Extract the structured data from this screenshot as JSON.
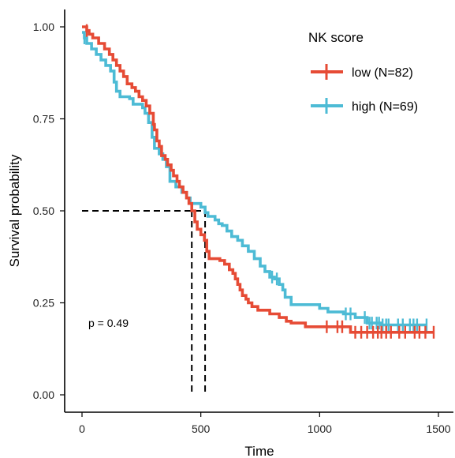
{
  "chart_data": {
    "type": "line",
    "subtype": "kaplan-meier step survival curves",
    "xlabel": "Time",
    "ylabel": "Survival probability",
    "xlim": [
      -70,
      1570
    ],
    "ylim": [
      -0.04,
      1.04
    ],
    "x_ticks": [
      0,
      500,
      1000,
      1500
    ],
    "y_ticks": [
      0.0,
      0.25,
      0.5,
      0.75,
      1.0
    ],
    "y_tick_labels": [
      "0.00",
      "0.25",
      "0.50",
      "0.75",
      "1.00"
    ],
    "grid": false,
    "legend": {
      "title": "NK score",
      "position": "top-right",
      "entries": [
        "low (N=82)",
        "high (N=69)"
      ]
    },
    "annotation": "p = 0.49",
    "median_survival": {
      "y": 0.5,
      "low_x": 462,
      "high_x": 518
    },
    "series": [
      {
        "name": "low (N=82)",
        "color": "#E64B35",
        "steps": [
          [
            0,
            1.0
          ],
          [
            20,
            0.99
          ],
          [
            30,
            0.98
          ],
          [
            45,
            0.97
          ],
          [
            70,
            0.955
          ],
          [
            95,
            0.94
          ],
          [
            115,
            0.925
          ],
          [
            130,
            0.91
          ],
          [
            145,
            0.895
          ],
          [
            160,
            0.88
          ],
          [
            175,
            0.865
          ],
          [
            190,
            0.845
          ],
          [
            210,
            0.835
          ],
          [
            225,
            0.825
          ],
          [
            240,
            0.81
          ],
          [
            255,
            0.8
          ],
          [
            270,
            0.785
          ],
          [
            285,
            0.765
          ],
          [
            300,
            0.735
          ],
          [
            305,
            0.72
          ],
          [
            315,
            0.69
          ],
          [
            325,
            0.675
          ],
          [
            335,
            0.65
          ],
          [
            350,
            0.64
          ],
          [
            360,
            0.625
          ],
          [
            375,
            0.61
          ],
          [
            385,
            0.595
          ],
          [
            400,
            0.58
          ],
          [
            410,
            0.565
          ],
          [
            425,
            0.55
          ],
          [
            440,
            0.535
          ],
          [
            450,
            0.52
          ],
          [
            462,
            0.5
          ],
          [
            475,
            0.47
          ],
          [
            485,
            0.45
          ],
          [
            500,
            0.435
          ],
          [
            515,
            0.42
          ],
          [
            525,
            0.39
          ],
          [
            535,
            0.37
          ],
          [
            580,
            0.365
          ],
          [
            600,
            0.355
          ],
          [
            620,
            0.34
          ],
          [
            635,
            0.33
          ],
          [
            645,
            0.315
          ],
          [
            655,
            0.3
          ],
          [
            665,
            0.285
          ],
          [
            675,
            0.27
          ],
          [
            690,
            0.26
          ],
          [
            700,
            0.25
          ],
          [
            715,
            0.24
          ],
          [
            740,
            0.23
          ],
          [
            790,
            0.22
          ],
          [
            830,
            0.21
          ],
          [
            860,
            0.2
          ],
          [
            880,
            0.195
          ],
          [
            940,
            0.185
          ],
          [
            1000,
            0.185
          ],
          [
            1050,
            0.185
          ],
          [
            1100,
            0.185
          ],
          [
            1130,
            0.17
          ],
          [
            1480,
            0.17
          ]
        ],
        "censored_x": [
          20,
          1030,
          1075,
          1095,
          1150,
          1175,
          1200,
          1225,
          1245,
          1260,
          1280,
          1300,
          1335,
          1360,
          1400,
          1420,
          1445,
          1480
        ]
      },
      {
        "name": "high (N=69)",
        "color": "#4DBBD5",
        "steps": [
          [
            0,
            0.985
          ],
          [
            10,
            0.97
          ],
          [
            20,
            0.955
          ],
          [
            40,
            0.94
          ],
          [
            60,
            0.925
          ],
          [
            80,
            0.91
          ],
          [
            100,
            0.895
          ],
          [
            120,
            0.88
          ],
          [
            135,
            0.85
          ],
          [
            145,
            0.825
          ],
          [
            160,
            0.81
          ],
          [
            200,
            0.805
          ],
          [
            215,
            0.79
          ],
          [
            255,
            0.78
          ],
          [
            265,
            0.765
          ],
          [
            280,
            0.74
          ],
          [
            295,
            0.7
          ],
          [
            305,
            0.67
          ],
          [
            325,
            0.655
          ],
          [
            340,
            0.64
          ],
          [
            355,
            0.62
          ],
          [
            370,
            0.58
          ],
          [
            395,
            0.565
          ],
          [
            420,
            0.55
          ],
          [
            440,
            0.535
          ],
          [
            455,
            0.52
          ],
          [
            500,
            0.51
          ],
          [
            518,
            0.495
          ],
          [
            530,
            0.485
          ],
          [
            560,
            0.475
          ],
          [
            575,
            0.465
          ],
          [
            590,
            0.46
          ],
          [
            610,
            0.445
          ],
          [
            630,
            0.43
          ],
          [
            655,
            0.42
          ],
          [
            675,
            0.405
          ],
          [
            700,
            0.39
          ],
          [
            725,
            0.37
          ],
          [
            750,
            0.35
          ],
          [
            770,
            0.335
          ],
          [
            790,
            0.32
          ],
          [
            810,
            0.315
          ],
          [
            830,
            0.3
          ],
          [
            845,
            0.285
          ],
          [
            855,
            0.265
          ],
          [
            880,
            0.245
          ],
          [
            930,
            0.245
          ],
          [
            1000,
            0.235
          ],
          [
            1035,
            0.225
          ],
          [
            1100,
            0.22
          ],
          [
            1150,
            0.21
          ],
          [
            1200,
            0.195
          ],
          [
            1260,
            0.19
          ],
          [
            1450,
            0.19
          ]
        ],
        "censored_x": [
          10,
          800,
          820,
          1110,
          1130,
          1190,
          1210,
          1220,
          1240,
          1250,
          1265,
          1280,
          1290,
          1330,
          1350,
          1380,
          1395,
          1410,
          1450
        ]
      }
    ]
  }
}
